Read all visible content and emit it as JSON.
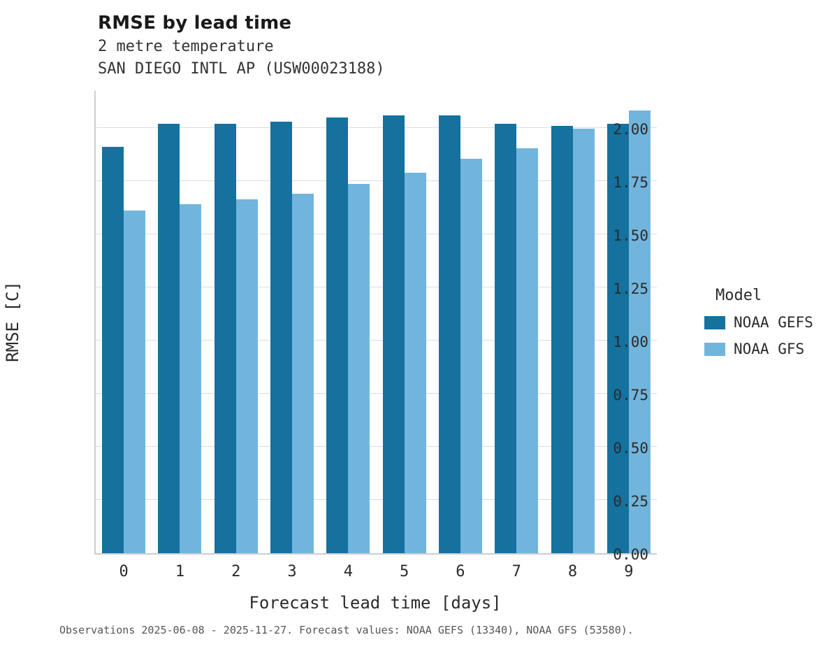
{
  "header": {
    "title": "RMSE by lead time",
    "subtitle": "2 metre temperature",
    "station": "SAN DIEGO INTL AP (USW00023188)"
  },
  "axes": {
    "y_label": "RMSE [C]",
    "x_label": "Forecast lead time [days]"
  },
  "legend": {
    "title": "Model",
    "entries": [
      "NOAA GEFS",
      "NOAA GFS"
    ]
  },
  "caption": "Observations 2025-06-08 - 2025-11-27. Forecast values: NOAA GEFS (13340), NOAA GFS (53580).",
  "colors": {
    "gefs": "#15719e",
    "gfs": "#72b5dc",
    "grid": "#d9dde1",
    "spine": "#c9ced3"
  },
  "chart_data": {
    "type": "bar",
    "title": "RMSE by lead time",
    "subtitle": "2 metre temperature",
    "station": "SAN DIEGO INTL AP (USW00023188)",
    "xlabel": "Forecast lead time [days]",
    "ylabel": "RMSE [C]",
    "categories": [
      "0",
      "1",
      "2",
      "3",
      "4",
      "5",
      "6",
      "7",
      "8",
      "9"
    ],
    "series": [
      {
        "name": "NOAA GEFS",
        "color": "#15719e",
        "values": [
          1.91,
          2.02,
          2.02,
          2.03,
          2.05,
          2.06,
          2.06,
          2.02,
          2.01,
          2.02
        ]
      },
      {
        "name": "NOAA GFS",
        "color": "#72b5dc",
        "values": [
          1.61,
          1.64,
          1.665,
          1.69,
          1.735,
          1.79,
          1.855,
          1.905,
          1.995,
          2.08
        ]
      }
    ],
    "yticks": [
      0.0,
      0.25,
      0.5,
      0.75,
      1.0,
      1.25,
      1.5,
      1.75,
      2.0
    ],
    "ytick_labels": [
      "0.00",
      "0.25",
      "0.50",
      "0.75",
      "1.00",
      "1.25",
      "1.50",
      "1.75",
      "2.00"
    ],
    "ylim": [
      0,
      2.18
    ],
    "grid": true,
    "legend_position": "right",
    "legend_title": "Model"
  }
}
